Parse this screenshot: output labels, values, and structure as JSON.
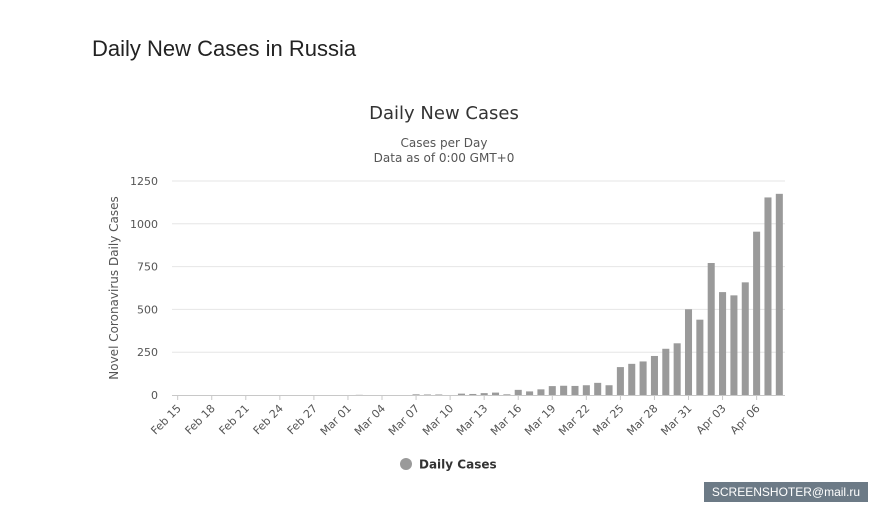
{
  "page": {
    "title": "Daily New Cases in Russia"
  },
  "watermark": "SCREENSHOTER@mail.ru",
  "chart_data": {
    "type": "bar",
    "title": "Daily New Cases",
    "subtitle_line1": "Cases per Day",
    "subtitle_line2": "Data as of 0:00 GMT+0",
    "xlabel": "",
    "ylabel": "Novel Coronavirus Daily Cases",
    "ylim": [
      0,
      1250
    ],
    "yticks": [
      0,
      250,
      500,
      750,
      1000,
      1250
    ],
    "grid": true,
    "legend_position": "bottom-center",
    "bar_color": "#9a9a9a",
    "categories": [
      "Feb 15",
      "Feb 16",
      "Feb 17",
      "Feb 18",
      "Feb 19",
      "Feb 20",
      "Feb 21",
      "Feb 22",
      "Feb 23",
      "Feb 24",
      "Feb 25",
      "Feb 26",
      "Feb 27",
      "Feb 28",
      "Feb 29",
      "Mar 01",
      "Mar 02",
      "Mar 03",
      "Mar 04",
      "Mar 05",
      "Mar 06",
      "Mar 07",
      "Mar 08",
      "Mar 09",
      "Mar 10",
      "Mar 11",
      "Mar 12",
      "Mar 13",
      "Mar 14",
      "Mar 15",
      "Mar 16",
      "Mar 17",
      "Mar 18",
      "Mar 19",
      "Mar 20",
      "Mar 21",
      "Mar 22",
      "Mar 23",
      "Mar 24",
      "Mar 25",
      "Mar 26",
      "Mar 27",
      "Mar 28",
      "Mar 29",
      "Mar 30",
      "Mar 31",
      "Apr 01",
      "Apr 02",
      "Apr 03",
      "Apr 04",
      "Apr 05",
      "Apr 06",
      "Apr 07",
      "Apr 08"
    ],
    "tick_labels": [
      "Feb 15",
      "Feb 18",
      "Feb 21",
      "Feb 24",
      "Feb 27",
      "Mar 01",
      "Mar 04",
      "Mar 07",
      "Mar 10",
      "Mar 13",
      "Mar 16",
      "Mar 19",
      "Mar 22",
      "Mar 25",
      "Mar 28",
      "Mar 31",
      "Apr 03",
      "Apr 06"
    ],
    "series": [
      {
        "name": "Daily Cases",
        "values": [
          0,
          0,
          0,
          0,
          0,
          0,
          0,
          0,
          0,
          0,
          0,
          0,
          0,
          0,
          0,
          0,
          1,
          0,
          0,
          0,
          0,
          4,
          3,
          3,
          0,
          8,
          6,
          11,
          14,
          4,
          30,
          21,
          33,
          52,
          54,
          53,
          57,
          71,
          57,
          163,
          182,
          196,
          228,
          270,
          302,
          501,
          440,
          771,
          601,
          582,
          658,
          954,
          1154,
          1175
        ]
      }
    ]
  }
}
